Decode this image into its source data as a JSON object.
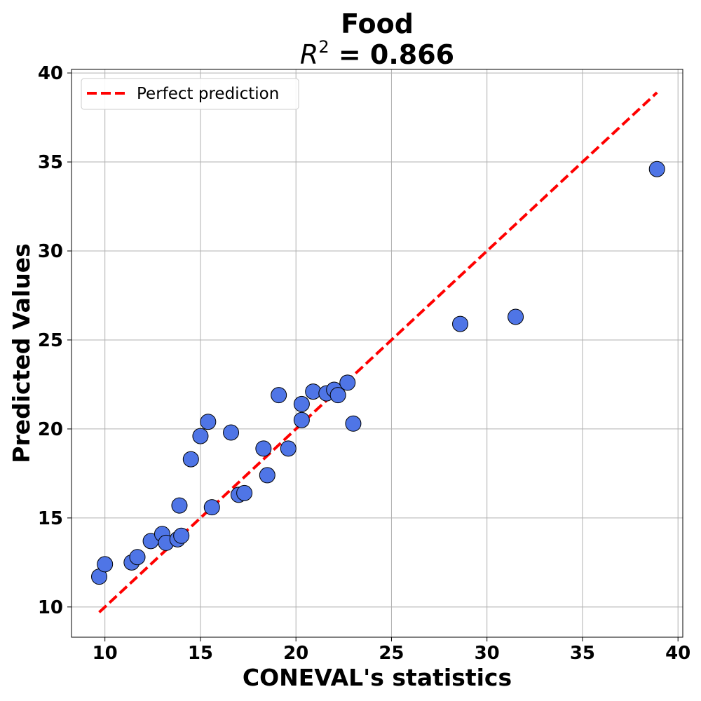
{
  "chart_data": {
    "type": "scatter",
    "title": "Food",
    "subtitle_var": "R",
    "subtitle_exp": "2",
    "subtitle_value": " = 0.866",
    "xlabel": "CONEVAL's statistics",
    "ylabel": "Predicted Values",
    "xlim": [
      8.25,
      40.25
    ],
    "ylim": [
      8.3,
      40.2
    ],
    "xticks": [
      10,
      15,
      20,
      25,
      30,
      35,
      40
    ],
    "yticks": [
      10,
      15,
      20,
      25,
      30,
      35,
      40
    ],
    "grid": true,
    "legend_position": "top-left",
    "point_color": "#4f75e6",
    "point_edge_color": "#000000",
    "points": [
      {
        "x": 9.7,
        "y": 11.7
      },
      {
        "x": 10.0,
        "y": 12.4
      },
      {
        "x": 11.4,
        "y": 12.5
      },
      {
        "x": 11.7,
        "y": 12.8
      },
      {
        "x": 12.4,
        "y": 13.7
      },
      {
        "x": 13.0,
        "y": 14.1
      },
      {
        "x": 13.2,
        "y": 13.6
      },
      {
        "x": 13.8,
        "y": 13.8
      },
      {
        "x": 14.0,
        "y": 14.0
      },
      {
        "x": 13.9,
        "y": 15.7
      },
      {
        "x": 14.5,
        "y": 18.3
      },
      {
        "x": 15.0,
        "y": 19.6
      },
      {
        "x": 15.4,
        "y": 20.4
      },
      {
        "x": 15.6,
        "y": 15.6
      },
      {
        "x": 16.6,
        "y": 19.8
      },
      {
        "x": 17.0,
        "y": 16.3
      },
      {
        "x": 17.3,
        "y": 16.4
      },
      {
        "x": 18.3,
        "y": 18.9
      },
      {
        "x": 18.5,
        "y": 17.4
      },
      {
        "x": 19.1,
        "y": 21.9
      },
      {
        "x": 19.6,
        "y": 18.9
      },
      {
        "x": 20.3,
        "y": 21.4
      },
      {
        "x": 20.3,
        "y": 20.5
      },
      {
        "x": 20.9,
        "y": 22.1
      },
      {
        "x": 21.6,
        "y": 22.0
      },
      {
        "x": 22.0,
        "y": 22.2
      },
      {
        "x": 22.2,
        "y": 21.9
      },
      {
        "x": 22.7,
        "y": 22.6
      },
      {
        "x": 23.0,
        "y": 20.3
      },
      {
        "x": 28.6,
        "y": 25.9
      },
      {
        "x": 31.5,
        "y": 26.3
      },
      {
        "x": 38.9,
        "y": 34.6
      }
    ],
    "reference_line": {
      "name": "Perfect prediction",
      "color": "#ff0000",
      "from": [
        9.7,
        9.7
      ],
      "to": [
        38.9,
        38.9
      ]
    }
  }
}
